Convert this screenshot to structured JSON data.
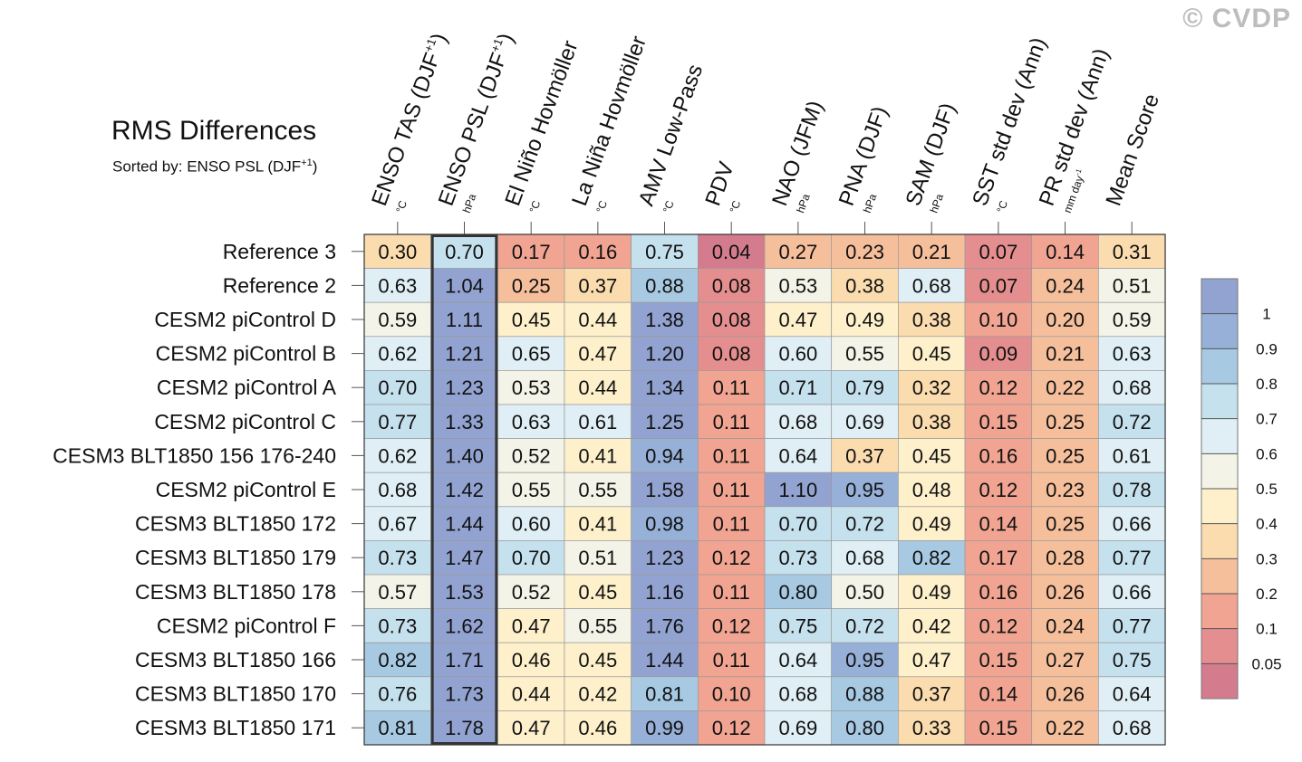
{
  "watermark": "© CVDP",
  "chart_data": {
    "type": "heatmap",
    "title": "RMS Differences",
    "subtitle_prefix": "Sorted by: ",
    "subtitle_metric": "ENSO PSL (DJF",
    "subtitle_sup": "+1",
    "subtitle_suffix": ")",
    "columns": [
      {
        "name": "ENSO TAS (DJF",
        "sup": "+1",
        "suffix": ")",
        "unit": "°C",
        "unit_sup": ""
      },
      {
        "name": "ENSO PSL (DJF",
        "sup": "+1",
        "suffix": ")",
        "unit": "hPa",
        "unit_sup": ""
      },
      {
        "name": "El Niño Hovmöller",
        "sup": "",
        "suffix": "",
        "unit": "°C",
        "unit_sup": ""
      },
      {
        "name": "La Niña Hovmöller",
        "sup": "",
        "suffix": "",
        "unit": "°C",
        "unit_sup": ""
      },
      {
        "name": "AMV Low-Pass",
        "sup": "",
        "suffix": "",
        "unit": "°C",
        "unit_sup": ""
      },
      {
        "name": "PDV",
        "sup": "",
        "suffix": "",
        "unit": "°C",
        "unit_sup": ""
      },
      {
        "name": "NAO (JFM)",
        "sup": "",
        "suffix": "",
        "unit": "hPa",
        "unit_sup": ""
      },
      {
        "name": "PNA (DJF)",
        "sup": "",
        "suffix": "",
        "unit": "hPa",
        "unit_sup": ""
      },
      {
        "name": "SAM (DJF)",
        "sup": "",
        "suffix": "",
        "unit": "hPa",
        "unit_sup": ""
      },
      {
        "name": "SST std dev (Ann)",
        "sup": "",
        "suffix": "",
        "unit": "°C",
        "unit_sup": ""
      },
      {
        "name": "PR std dev (Ann)",
        "sup": "",
        "suffix": "",
        "unit": "mm day",
        "unit_sup": "-1"
      },
      {
        "name": "Mean Score",
        "sup": "",
        "suffix": "",
        "unit": "",
        "unit_sup": ""
      }
    ],
    "rows": [
      "Reference 3",
      "Reference 2",
      "CESM2 piControl D",
      "CESM2 piControl B",
      "CESM2 piControl A",
      "CESM2 piControl C",
      "CESM3 BLT1850 156 176-240",
      "CESM2 piControl E",
      "CESM3 BLT1850 172",
      "CESM3 BLT1850 179",
      "CESM3 BLT1850 178",
      "CESM2 piControl F",
      "CESM3 BLT1850 166",
      "CESM3 BLT1850 170",
      "CESM3 BLT1850 171"
    ],
    "values": [
      [
        "0.30",
        "0.70",
        "0.17",
        "0.16",
        "0.75",
        "0.04",
        "0.27",
        "0.23",
        "0.21",
        "0.07",
        "0.14",
        "0.31"
      ],
      [
        "0.63",
        "1.04",
        "0.25",
        "0.37",
        "0.88",
        "0.08",
        "0.53",
        "0.38",
        "0.68",
        "0.07",
        "0.24",
        "0.51"
      ],
      [
        "0.59",
        "1.11",
        "0.45",
        "0.44",
        "1.38",
        "0.08",
        "0.47",
        "0.49",
        "0.38",
        "0.10",
        "0.20",
        "0.59"
      ],
      [
        "0.62",
        "1.21",
        "0.65",
        "0.47",
        "1.20",
        "0.08",
        "0.60",
        "0.55",
        "0.45",
        "0.09",
        "0.21",
        "0.63"
      ],
      [
        "0.70",
        "1.23",
        "0.53",
        "0.44",
        "1.34",
        "0.11",
        "0.71",
        "0.79",
        "0.32",
        "0.12",
        "0.22",
        "0.68"
      ],
      [
        "0.77",
        "1.33",
        "0.63",
        "0.61",
        "1.25",
        "0.11",
        "0.68",
        "0.69",
        "0.38",
        "0.15",
        "0.25",
        "0.72"
      ],
      [
        "0.62",
        "1.40",
        "0.52",
        "0.41",
        "0.94",
        "0.11",
        "0.64",
        "0.37",
        "0.45",
        "0.16",
        "0.25",
        "0.61"
      ],
      [
        "0.68",
        "1.42",
        "0.55",
        "0.55",
        "1.58",
        "0.11",
        "1.10",
        "0.95",
        "0.48",
        "0.12",
        "0.23",
        "0.78"
      ],
      [
        "0.67",
        "1.44",
        "0.60",
        "0.41",
        "0.98",
        "0.11",
        "0.70",
        "0.72",
        "0.49",
        "0.14",
        "0.25",
        "0.66"
      ],
      [
        "0.73",
        "1.47",
        "0.70",
        "0.51",
        "1.23",
        "0.12",
        "0.73",
        "0.68",
        "0.82",
        "0.17",
        "0.28",
        "0.77"
      ],
      [
        "0.57",
        "1.53",
        "0.52",
        "0.45",
        "1.16",
        "0.11",
        "0.80",
        "0.50",
        "0.49",
        "0.16",
        "0.26",
        "0.66"
      ],
      [
        "0.73",
        "1.62",
        "0.47",
        "0.55",
        "1.76",
        "0.12",
        "0.75",
        "0.72",
        "0.42",
        "0.12",
        "0.24",
        "0.77"
      ],
      [
        "0.82",
        "1.71",
        "0.46",
        "0.45",
        "1.44",
        "0.11",
        "0.64",
        "0.95",
        "0.47",
        "0.15",
        "0.27",
        "0.75"
      ],
      [
        "0.76",
        "1.73",
        "0.44",
        "0.42",
        "0.81",
        "0.10",
        "0.68",
        "0.88",
        "0.37",
        "0.14",
        "0.26",
        "0.64"
      ],
      [
        "0.81",
        "1.78",
        "0.47",
        "0.46",
        "0.99",
        "0.12",
        "0.69",
        "0.80",
        "0.33",
        "0.15",
        "0.22",
        "0.68"
      ]
    ],
    "highlight_column": 1,
    "colorbar": {
      "levels": [
        0.05,
        0.1,
        0.2,
        0.3,
        0.4,
        0.5,
        0.6,
        0.7,
        0.8,
        0.9,
        1
      ],
      "labels": [
        "0.05",
        "0.1",
        "0.2",
        "0.3",
        "0.4",
        "0.5",
        "0.6",
        "0.7",
        "0.8",
        "0.9",
        "1"
      ],
      "colors": [
        "#d47c8e",
        "#e48e8f",
        "#f0a491",
        "#f6bf9c",
        "#fbdcaf",
        "#fdf0cb",
        "#f3f3e8",
        "#dfeff5",
        "#c6e1ee",
        "#a8c9e2",
        "#96b0d7",
        "#93a3d1"
      ]
    }
  }
}
